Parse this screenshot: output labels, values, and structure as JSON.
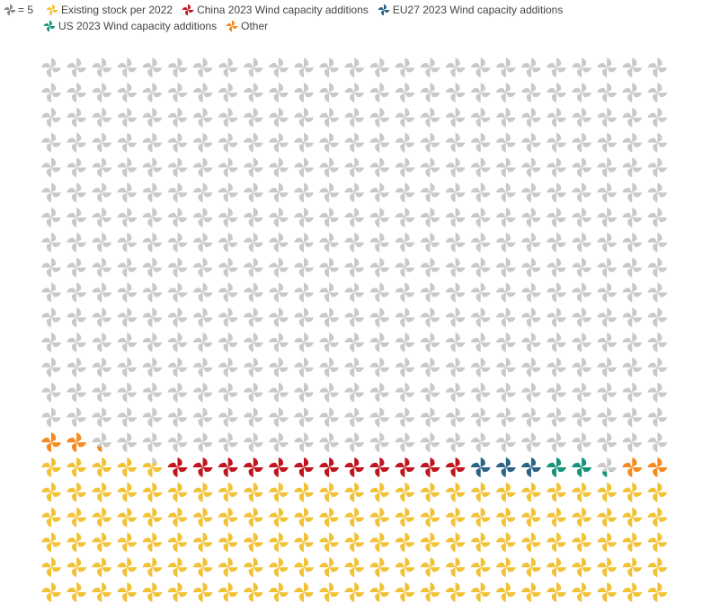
{
  "legend": {
    "unit_label": "= 5",
    "entries": [
      {
        "key": "existing",
        "label": "Existing stock per 2022",
        "color": "#f2c236"
      },
      {
        "key": "china",
        "label": "China 2023 Wind capacity additions",
        "color": "#c0151e"
      },
      {
        "key": "eu27",
        "label": "EU27 2023 Wind capacity additions",
        "color": "#2a6485"
      },
      {
        "key": "us",
        "label": "US 2023 Wind capacity additions",
        "color": "#17937a"
      },
      {
        "key": "other",
        "label": "Other",
        "color": "#f6891f"
      }
    ],
    "unit_color": "#888888"
  },
  "chart_data": {
    "type": "waffle",
    "unit_value": 5,
    "columns": 25,
    "rows": 22,
    "filled_order": "bottom-to-top, left-to-right",
    "series": [
      {
        "name": "Existing stock per 2022",
        "key": "existing",
        "icons": 129.7
      },
      {
        "name": "China 2023 Wind capacity additions",
        "key": "china",
        "icons": 12
      },
      {
        "name": "EU27 2023 Wind capacity additions",
        "key": "eu27",
        "icons": 3
      },
      {
        "name": "US 2023 Wind capacity additions",
        "key": "us",
        "icons": 2.3
      },
      {
        "name": "Other",
        "key": "other",
        "icons": 4.3
      }
    ],
    "remaining_color": "#c9c9c9",
    "remaining_icons": 398.7
  }
}
